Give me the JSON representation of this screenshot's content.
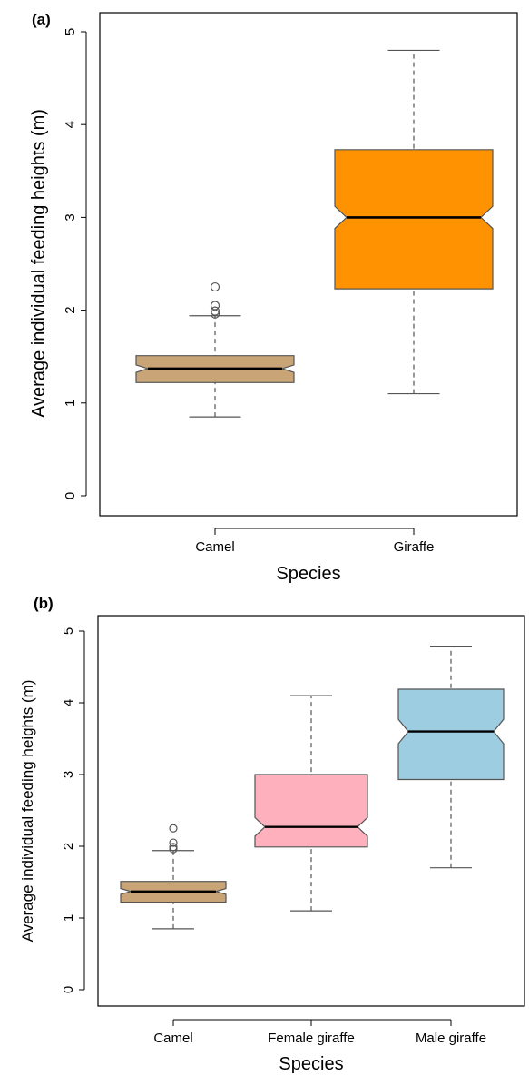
{
  "colors": {
    "camel": "#c8a476",
    "giraffe": "#ff9200",
    "female_giraffe": "#ffb0bd",
    "male_giraffe": "#9dcde0",
    "outline": "#555555"
  },
  "chart_data": [
    {
      "type": "boxplot",
      "panel_label": "(a)",
      "xlabel": "Species",
      "ylabel": "Average individual feeding heights (m)",
      "ylim": [
        0,
        5
      ],
      "yticks": [
        "0",
        "1",
        "2",
        "3",
        "4",
        "5"
      ],
      "notched": true,
      "categories": [
        "Camel",
        "Giraffe"
      ],
      "boxes": [
        {
          "name": "Camel",
          "whisker_low": 0.85,
          "q1": 1.22,
          "median": 1.37,
          "q3": 1.51,
          "whisker_high": 1.94,
          "notch_low": 1.33,
          "notch_high": 1.41,
          "outliers": [
            1.96,
            1.99,
            2.05,
            2.25
          ],
          "color": "#c8a476"
        },
        {
          "name": "Giraffe",
          "whisker_low": 1.1,
          "q1": 2.23,
          "median": 3.0,
          "q3": 3.73,
          "whisker_high": 4.8,
          "notch_low": 2.88,
          "notch_high": 3.12,
          "outliers": [],
          "color": "#ff9200"
        }
      ]
    },
    {
      "type": "boxplot",
      "panel_label": "(b)",
      "xlabel": "Species",
      "ylabel": "Average individual feeding heights (m)",
      "ylim": [
        0,
        5
      ],
      "yticks": [
        "0",
        "1",
        "2",
        "3",
        "4",
        "5"
      ],
      "notched": true,
      "categories": [
        "Camel",
        "Female giraffe",
        "Male giraffe"
      ],
      "boxes": [
        {
          "name": "Camel",
          "whisker_low": 0.85,
          "q1": 1.22,
          "median": 1.37,
          "q3": 1.51,
          "whisker_high": 1.94,
          "notch_low": 1.33,
          "notch_high": 1.41,
          "outliers": [
            1.96,
            1.99,
            2.05,
            2.25
          ],
          "color": "#c8a476"
        },
        {
          "name": "Female giraffe",
          "whisker_low": 1.1,
          "q1": 1.99,
          "median": 2.27,
          "q3": 3.0,
          "whisker_high": 4.1,
          "notch_low": 2.14,
          "notch_high": 2.4,
          "outliers": [],
          "color": "#ffb0bd"
        },
        {
          "name": "Male giraffe",
          "whisker_low": 1.7,
          "q1": 2.93,
          "median": 3.6,
          "q3": 4.19,
          "whisker_high": 4.79,
          "notch_low": 3.43,
          "notch_high": 3.77,
          "outliers": [],
          "color": "#9dcde0"
        }
      ]
    }
  ]
}
